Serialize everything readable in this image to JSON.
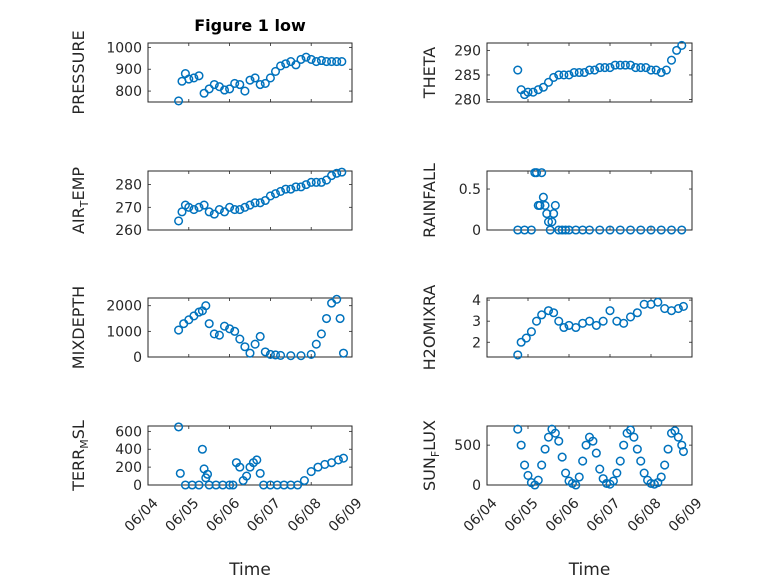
{
  "chart_data": [
    {
      "type": "scatter",
      "title": "Figure 1 low",
      "ylabel": "PRESSURE",
      "ylabel_sub": "",
      "ylabel_tail": "",
      "ylim": [
        750,
        1020
      ],
      "yticks": [
        800,
        900,
        1000
      ],
      "x": [
        "2010-06-04 18:00",
        "2010-06-04 20:00",
        "2010-06-04 22:00",
        "2010-06-05 00:00",
        "2010-06-05 03:00",
        "2010-06-05 06:00",
        "2010-06-05 09:00",
        "2010-06-05 12:00",
        "2010-06-05 15:00",
        "2010-06-05 18:00",
        "2010-06-05 21:00",
        "2010-06-06 00:00",
        "2010-06-06 03:00",
        "2010-06-06 06:00",
        "2010-06-06 09:00",
        "2010-06-06 12:00",
        "2010-06-06 15:00",
        "2010-06-06 18:00",
        "2010-06-06 21:00",
        "2010-06-07 00:00",
        "2010-06-07 03:00",
        "2010-06-07 06:00",
        "2010-06-07 09:00",
        "2010-06-07 12:00",
        "2010-06-07 15:00",
        "2010-06-07 18:00",
        "2010-06-07 21:00",
        "2010-06-08 00:00",
        "2010-06-08 03:00",
        "2010-06-08 06:00",
        "2010-06-08 09:00",
        "2010-06-08 12:00",
        "2010-06-08 15:00",
        "2010-06-08 18:00"
      ],
      "series": [
        {
          "values": [
            755,
            845,
            880,
            855,
            860,
            870,
            790,
            810,
            830,
            820,
            805,
            810,
            835,
            830,
            800,
            850,
            860,
            830,
            835,
            860,
            890,
            915,
            925,
            935,
            920,
            945,
            955,
            945,
            935,
            940,
            935,
            935,
            935,
            935
          ]
        }
      ]
    },
    {
      "type": "scatter",
      "title": "",
      "ylabel": "THETA",
      "ylabel_sub": "",
      "ylabel_tail": "",
      "ylim": [
        279.5,
        291.5
      ],
      "yticks": [
        280,
        285,
        290
      ],
      "x": [
        "2010-06-04 18:00",
        "2010-06-04 20:00",
        "2010-06-04 22:00",
        "2010-06-05 00:00",
        "2010-06-05 03:00",
        "2010-06-05 06:00",
        "2010-06-05 09:00",
        "2010-06-05 12:00",
        "2010-06-05 15:00",
        "2010-06-05 18:00",
        "2010-06-05 21:00",
        "2010-06-06 00:00",
        "2010-06-06 03:00",
        "2010-06-06 06:00",
        "2010-06-06 09:00",
        "2010-06-06 12:00",
        "2010-06-06 15:00",
        "2010-06-06 18:00",
        "2010-06-06 21:00",
        "2010-06-07 00:00",
        "2010-06-07 03:00",
        "2010-06-07 06:00",
        "2010-06-07 09:00",
        "2010-06-07 12:00",
        "2010-06-07 15:00",
        "2010-06-07 18:00",
        "2010-06-07 21:00",
        "2010-06-08 00:00",
        "2010-06-08 03:00",
        "2010-06-08 06:00",
        "2010-06-08 09:00",
        "2010-06-08 12:00",
        "2010-06-08 15:00",
        "2010-06-08 18:00"
      ],
      "series": [
        {
          "values": [
            286,
            282,
            281,
            281.5,
            281.5,
            282,
            282.5,
            283.5,
            284.5,
            285,
            285,
            285,
            285.5,
            285.5,
            285.5,
            286,
            286,
            286.5,
            286.5,
            286.5,
            287,
            287,
            287,
            287,
            286.5,
            286.5,
            286.5,
            286,
            286,
            285.5,
            286,
            288,
            290,
            291
          ]
        }
      ]
    },
    {
      "type": "scatter",
      "title": "",
      "ylabel": "AIR",
      "ylabel_sub": "T",
      "ylabel_tail": "EMP",
      "ylim": [
        260,
        286
      ],
      "yticks": [
        260,
        270,
        280
      ],
      "x": [
        "2010-06-04 18:00",
        "2010-06-04 20:00",
        "2010-06-04 22:00",
        "2010-06-05 00:00",
        "2010-06-05 03:00",
        "2010-06-05 06:00",
        "2010-06-05 09:00",
        "2010-06-05 12:00",
        "2010-06-05 15:00",
        "2010-06-05 18:00",
        "2010-06-05 21:00",
        "2010-06-06 00:00",
        "2010-06-06 03:00",
        "2010-06-06 06:00",
        "2010-06-06 09:00",
        "2010-06-06 12:00",
        "2010-06-06 15:00",
        "2010-06-06 18:00",
        "2010-06-06 21:00",
        "2010-06-07 00:00",
        "2010-06-07 03:00",
        "2010-06-07 06:00",
        "2010-06-07 09:00",
        "2010-06-07 12:00",
        "2010-06-07 15:00",
        "2010-06-07 18:00",
        "2010-06-07 21:00",
        "2010-06-08 00:00",
        "2010-06-08 03:00",
        "2010-06-08 06:00",
        "2010-06-08 09:00",
        "2010-06-08 12:00",
        "2010-06-08 15:00",
        "2010-06-08 18:00"
      ],
      "series": [
        {
          "values": [
            264,
            268,
            271,
            270,
            269,
            270,
            271,
            268,
            267,
            269,
            268,
            270,
            269,
            269,
            270,
            271,
            272,
            272,
            273,
            275,
            276,
            277,
            278,
            278,
            279,
            279,
            280,
            281,
            281,
            281,
            282,
            284,
            285,
            285.5
          ]
        }
      ]
    },
    {
      "type": "scatter",
      "title": "",
      "ylabel": "RAINFALL",
      "ylabel_sub": "",
      "ylabel_tail": "",
      "ylim": [
        0,
        0.72
      ],
      "yticks": [
        0,
        0.5
      ],
      "x": [
        "2010-06-04 18:00",
        "2010-06-04 22:00",
        "2010-06-05 02:00",
        "2010-06-05 04:00",
        "2010-06-05 05:00",
        "2010-06-05 06:00",
        "2010-06-05 07:00",
        "2010-06-05 08:00",
        "2010-06-05 09:00",
        "2010-06-05 10:00",
        "2010-06-05 11:00",
        "2010-06-05 12:00",
        "2010-06-05 13:00",
        "2010-06-05 14:00",
        "2010-06-05 15:00",
        "2010-06-05 16:00",
        "2010-06-05 18:00",
        "2010-06-05 20:00",
        "2010-06-05 22:00",
        "2010-06-06 00:00",
        "2010-06-06 04:00",
        "2010-06-06 08:00",
        "2010-06-06 12:00",
        "2010-06-06 18:00",
        "2010-06-07 00:00",
        "2010-06-07 06:00",
        "2010-06-07 12:00",
        "2010-06-07 18:00",
        "2010-06-08 00:00",
        "2010-06-08 06:00",
        "2010-06-08 12:00",
        "2010-06-08 18:00"
      ],
      "series": [
        {
          "values": [
            0,
            0,
            0,
            0.7,
            0.7,
            0.3,
            0.3,
            0.7,
            0.4,
            0.3,
            0.2,
            0.1,
            0,
            0.1,
            0.2,
            0.3,
            0,
            0,
            0,
            0,
            0,
            0,
            0,
            0,
            0,
            0,
            0,
            0,
            0,
            0,
            0,
            0
          ]
        }
      ]
    },
    {
      "type": "scatter",
      "title": "",
      "ylabel": "MIXDEPTH",
      "ylabel_sub": "",
      "ylabel_tail": "",
      "ylim": [
        0,
        2300
      ],
      "yticks": [
        0,
        1000,
        2000
      ],
      "x": [
        "2010-06-04 18:00",
        "2010-06-04 21:00",
        "2010-06-05 00:00",
        "2010-06-05 03:00",
        "2010-06-05 06:00",
        "2010-06-05 08:00",
        "2010-06-05 10:00",
        "2010-06-05 12:00",
        "2010-06-05 15:00",
        "2010-06-05 18:00",
        "2010-06-05 21:00",
        "2010-06-06 00:00",
        "2010-06-06 03:00",
        "2010-06-06 06:00",
        "2010-06-06 09:00",
        "2010-06-06 12:00",
        "2010-06-06 15:00",
        "2010-06-06 18:00",
        "2010-06-06 21:00",
        "2010-06-07 00:00",
        "2010-06-07 03:00",
        "2010-06-07 06:00",
        "2010-06-07 12:00",
        "2010-06-07 18:00",
        "2010-06-08 00:00",
        "2010-06-08 03:00",
        "2010-06-08 06:00",
        "2010-06-08 09:00",
        "2010-06-08 12:00",
        "2010-06-08 15:00",
        "2010-06-08 17:00",
        "2010-06-08 19:00"
      ],
      "series": [
        {
          "values": [
            1050,
            1300,
            1450,
            1600,
            1750,
            1800,
            2000,
            1300,
            900,
            850,
            1200,
            1100,
            1000,
            700,
            400,
            150,
            500,
            800,
            200,
            100,
            80,
            60,
            50,
            50,
            100,
            500,
            900,
            1500,
            2100,
            2250,
            1500,
            150
          ]
        }
      ]
    },
    {
      "type": "scatter",
      "title": "",
      "ylabel": "H2OMIXRA",
      "ylabel_sub": "",
      "ylabel_tail": "",
      "ylim": [
        1.3,
        4.1
      ],
      "yticks": [
        2,
        3,
        4
      ],
      "x": [
        "2010-06-04 18:00",
        "2010-06-04 20:00",
        "2010-06-04 23:00",
        "2010-06-05 02:00",
        "2010-06-05 05:00",
        "2010-06-05 08:00",
        "2010-06-05 12:00",
        "2010-06-05 15:00",
        "2010-06-05 18:00",
        "2010-06-05 21:00",
        "2010-06-06 00:00",
        "2010-06-06 04:00",
        "2010-06-06 08:00",
        "2010-06-06 12:00",
        "2010-06-06 16:00",
        "2010-06-06 20:00",
        "2010-06-07 00:00",
        "2010-06-07 04:00",
        "2010-06-07 08:00",
        "2010-06-07 12:00",
        "2010-06-07 16:00",
        "2010-06-07 20:00",
        "2010-06-08 00:00",
        "2010-06-08 04:00",
        "2010-06-08 08:00",
        "2010-06-08 12:00",
        "2010-06-08 16:00",
        "2010-06-08 19:00"
      ],
      "series": [
        {
          "values": [
            1.4,
            2.0,
            2.2,
            2.5,
            3.0,
            3.3,
            3.5,
            3.4,
            3.0,
            2.7,
            2.8,
            2.7,
            2.9,
            3.0,
            2.8,
            3.0,
            3.5,
            3.0,
            2.9,
            3.2,
            3.4,
            3.8,
            3.8,
            3.9,
            3.6,
            3.5,
            3.6,
            3.7
          ]
        }
      ]
    },
    {
      "type": "scatter",
      "title": "",
      "ylabel": "TERR",
      "ylabel_sub": "M",
      "ylabel_tail": "SL",
      "ylim": [
        0,
        660
      ],
      "yticks": [
        0,
        200,
        400,
        600
      ],
      "x": [
        "2010-06-04 18:00",
        "2010-06-04 19:00",
        "2010-06-04 22:00",
        "2010-06-05 02:00",
        "2010-06-05 06:00",
        "2010-06-05 08:00",
        "2010-06-05 09:00",
        "2010-06-05 10:00",
        "2010-06-05 11:00",
        "2010-06-05 12:00",
        "2010-06-05 16:00",
        "2010-06-05 20:00",
        "2010-06-06 00:00",
        "2010-06-06 02:00",
        "2010-06-06 04:00",
        "2010-06-06 06:00",
        "2010-06-06 08:00",
        "2010-06-06 10:00",
        "2010-06-06 12:00",
        "2010-06-06 14:00",
        "2010-06-06 16:00",
        "2010-06-06 18:00",
        "2010-06-06 20:00",
        "2010-06-07 00:00",
        "2010-06-07 04:00",
        "2010-06-07 08:00",
        "2010-06-07 12:00",
        "2010-06-07 16:00",
        "2010-06-07 20:00",
        "2010-06-08 00:00",
        "2010-06-08 04:00",
        "2010-06-08 08:00",
        "2010-06-08 12:00",
        "2010-06-08 16:00",
        "2010-06-08 19:00"
      ],
      "series": [
        {
          "values": [
            650,
            130,
            0,
            0,
            0,
            400,
            180,
            80,
            120,
            0,
            0,
            0,
            0,
            0,
            250,
            200,
            50,
            100,
            200,
            250,
            280,
            130,
            0,
            0,
            0,
            0,
            0,
            0,
            50,
            150,
            200,
            230,
            250,
            280,
            300
          ]
        }
      ]
    },
    {
      "type": "scatter",
      "title": "",
      "ylabel": "SUN",
      "ylabel_sub": "F",
      "ylabel_tail": "LUX",
      "ylim": [
        0,
        740
      ],
      "yticks": [
        0,
        500
      ],
      "x": [
        "2010-06-04 18:00",
        "2010-06-04 20:00",
        "2010-06-04 22:00",
        "2010-06-05 00:00",
        "2010-06-05 02:00",
        "2010-06-05 04:00",
        "2010-06-05 06:00",
        "2010-06-05 08:00",
        "2010-06-05 10:00",
        "2010-06-05 12:00",
        "2010-06-05 14:00",
        "2010-06-05 16:00",
        "2010-06-05 18:00",
        "2010-06-05 20:00",
        "2010-06-05 22:00",
        "2010-06-06 00:00",
        "2010-06-06 02:00",
        "2010-06-06 04:00",
        "2010-06-06 06:00",
        "2010-06-06 08:00",
        "2010-06-06 10:00",
        "2010-06-06 12:00",
        "2010-06-06 14:00",
        "2010-06-06 16:00",
        "2010-06-06 18:00",
        "2010-06-06 20:00",
        "2010-06-06 22:00",
        "2010-06-07 00:00",
        "2010-06-07 02:00",
        "2010-06-07 04:00",
        "2010-06-07 06:00",
        "2010-06-07 08:00",
        "2010-06-07 10:00",
        "2010-06-07 12:00",
        "2010-06-07 14:00",
        "2010-06-07 16:00",
        "2010-06-07 18:00",
        "2010-06-07 20:00",
        "2010-06-07 22:00",
        "2010-06-08 00:00",
        "2010-06-08 02:00",
        "2010-06-08 04:00",
        "2010-06-08 06:00",
        "2010-06-08 08:00",
        "2010-06-08 10:00",
        "2010-06-08 12:00",
        "2010-06-08 14:00",
        "2010-06-08 16:00",
        "2010-06-08 18:00",
        "2010-06-08 19:00"
      ],
      "series": [
        {
          "values": [
            700,
            500,
            250,
            120,
            30,
            0,
            60,
            250,
            450,
            600,
            700,
            650,
            550,
            350,
            150,
            50,
            20,
            0,
            100,
            300,
            500,
            600,
            550,
            400,
            200,
            80,
            20,
            10,
            50,
            150,
            300,
            500,
            650,
            690,
            600,
            450,
            300,
            150,
            60,
            20,
            10,
            30,
            100,
            250,
            450,
            650,
            680,
            600,
            500,
            420
          ]
        }
      ]
    }
  ],
  "shared_axis": {
    "xlim": [
      "2010-06-04 00:00",
      "2010-06-09 00:00"
    ],
    "xticks": [
      "2010-06-04",
      "2010-06-05",
      "2010-06-06",
      "2010-06-07",
      "2010-06-08",
      "2010-06-09"
    ],
    "xtick_labels": [
      "06/04",
      "06/05",
      "06/06",
      "06/07",
      "06/08",
      "06/09"
    ],
    "xlabel": "Time",
    "grid": true,
    "marker": "open-circle",
    "marker_color": "#0072BD"
  }
}
